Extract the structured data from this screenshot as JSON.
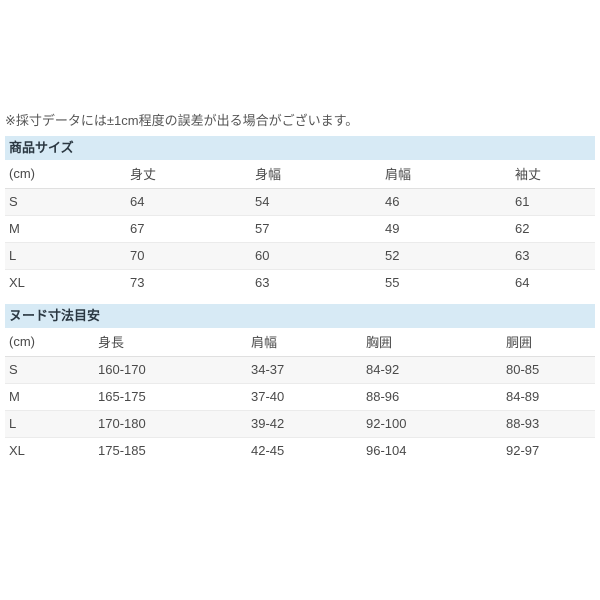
{
  "note": "※採寸データには±1cm程度の誤差が出る場合がございます。",
  "colors": {
    "section_header_bg": "#d7eaf5",
    "section_header_text": "#2b3842",
    "body_text": "#4a4a4a",
    "note_text": "#555555",
    "stripe_bg": "#f7f7f7",
    "row_border": "#ebebeb",
    "header_border": "#e0e0e0"
  },
  "tables": [
    {
      "title": "商品サイズ",
      "columns": [
        "(cm)",
        "身丈",
        "身幅",
        "肩幅",
        "袖丈"
      ],
      "rows": [
        {
          "size": "S",
          "values": [
            "64",
            "54",
            "46",
            "61"
          ]
        },
        {
          "size": "M",
          "values": [
            "67",
            "57",
            "49",
            "62"
          ]
        },
        {
          "size": "L",
          "values": [
            "70",
            "60",
            "52",
            "63"
          ]
        },
        {
          "size": "XL",
          "values": [
            "73",
            "63",
            "55",
            "64"
          ]
        }
      ]
    },
    {
      "title": "ヌード寸法目安",
      "columns": [
        "(cm)",
        "身長",
        "肩幅",
        "胸囲",
        "胴囲"
      ],
      "rows": [
        {
          "size": "S",
          "values": [
            "160-170",
            "34-37",
            "84-92",
            "80-85"
          ]
        },
        {
          "size": "M",
          "values": [
            "165-175",
            "37-40",
            "88-96",
            "84-89"
          ]
        },
        {
          "size": "L",
          "values": [
            "170-180",
            "39-42",
            "92-100",
            "88-93"
          ]
        },
        {
          "size": "XL",
          "values": [
            "175-185",
            "42-45",
            "96-104",
            "92-97"
          ]
        }
      ]
    }
  ]
}
